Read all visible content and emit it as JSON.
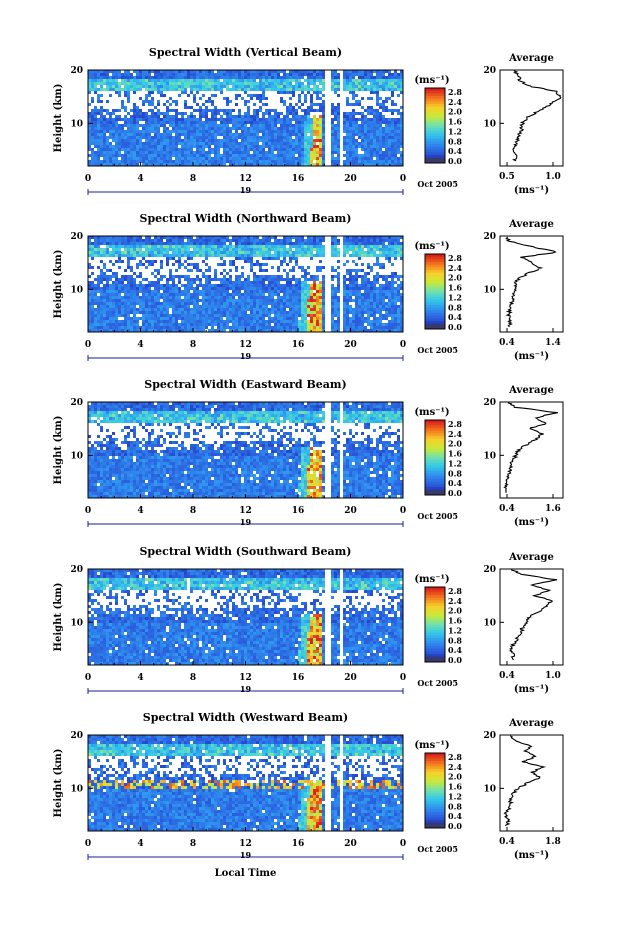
{
  "figure": {
    "xlabel": "Local Time",
    "ylabel": "Height (km)",
    "date_label": "Oct 2005",
    "day_label": "19",
    "colorbar_unit": "(ms⁻¹)",
    "avg_title": "Average",
    "avg_xlabel": "(ms⁻¹)"
  },
  "chart_data": [
    {
      "type": "heatmap",
      "title": "Spectral Width (Vertical Beam)",
      "xlabel": "",
      "ylabel": "Height (km)",
      "xlim": [
        0,
        24
      ],
      "xticks": [
        "0",
        "4",
        "8",
        "12",
        "16",
        "20",
        "0"
      ],
      "ylim": [
        2,
        20
      ],
      "yticks": [
        "20",
        "10"
      ],
      "colorbar": {
        "ticks": [
          "2.8",
          "2.4",
          "2.0",
          "1.6",
          "1.2",
          "0.8",
          "0.4",
          "0.0"
        ],
        "range": [
          0,
          2.8
        ]
      },
      "enhanced_region": {
        "start_hour": 16.8,
        "end_hour": 17.8
      },
      "average_profile": {
        "title": "Average",
        "xlim": [
          0.4,
          1.1
        ],
        "xticks": [
          "0.5",
          "1.0"
        ],
        "yticks": [
          "20",
          "10"
        ],
        "height": [
          3,
          4,
          5,
          6,
          7,
          8,
          9,
          10,
          11,
          12,
          13,
          14,
          15,
          16,
          17,
          18,
          19,
          20
        ],
        "values": [
          0.56,
          0.58,
          0.55,
          0.58,
          0.6,
          0.62,
          0.64,
          0.65,
          0.7,
          0.8,
          0.9,
          1.0,
          1.08,
          1.02,
          0.72,
          0.62,
          0.6,
          0.55
        ]
      }
    },
    {
      "type": "heatmap",
      "title": "Spectral Width (Northward Beam)",
      "xlabel": "",
      "ylabel": "Height (km)",
      "xlim": [
        0,
        24
      ],
      "xticks": [
        "0",
        "4",
        "8",
        "12",
        "16",
        "20",
        "0"
      ],
      "ylim": [
        2,
        20
      ],
      "yticks": [
        "20",
        "10"
      ],
      "colorbar": {
        "ticks": [
          "2.8",
          "2.4",
          "2.0",
          "1.6",
          "1.2",
          "0.8",
          "0.4",
          "0.0"
        ],
        "range": [
          0,
          2.8
        ]
      },
      "enhanced_region": {
        "start_hour": 16.5,
        "end_hour": 17.8
      },
      "average_profile": {
        "title": "Average",
        "xlim": [
          0.4,
          1.4
        ],
        "xticks": [
          "0.4",
          "1.4"
        ],
        "yticks": [
          "20",
          "10"
        ],
        "height": [
          3,
          4,
          5,
          6,
          7,
          8,
          9,
          10,
          11,
          12,
          13,
          14,
          15,
          16,
          17,
          18,
          19,
          20
        ],
        "values": [
          0.55,
          0.56,
          0.54,
          0.55,
          0.58,
          0.6,
          0.62,
          0.65,
          0.64,
          0.7,
          0.85,
          1.05,
          0.9,
          0.75,
          1.3,
          0.9,
          0.55,
          0.5
        ]
      }
    },
    {
      "type": "heatmap",
      "title": "Spectral Width (Eastward Beam)",
      "xlabel": "",
      "ylabel": "Height (km)",
      "xlim": [
        0,
        24
      ],
      "xticks": [
        "0",
        "4",
        "8",
        "12",
        "16",
        "20",
        "0"
      ],
      "ylim": [
        2,
        20
      ],
      "yticks": [
        "20",
        "10"
      ],
      "colorbar": {
        "ticks": [
          "2.8",
          "2.4",
          "2.0",
          "1.6",
          "1.2",
          "0.8",
          "0.4",
          "0.0"
        ],
        "range": [
          0,
          2.8
        ]
      },
      "enhanced_region": {
        "start_hour": 16.5,
        "end_hour": 17.8
      },
      "average_profile": {
        "title": "Average",
        "xlim": [
          0.4,
          1.6
        ],
        "xticks": [
          "0.4",
          "1.6"
        ],
        "yticks": [
          "20",
          "10"
        ],
        "height": [
          3,
          4,
          5,
          6,
          7,
          8,
          9,
          10,
          11,
          12,
          13,
          14,
          15,
          16,
          17,
          18,
          19,
          20
        ],
        "values": [
          0.5,
          0.52,
          0.5,
          0.55,
          0.58,
          0.6,
          0.65,
          0.7,
          0.75,
          0.9,
          1.1,
          1.2,
          0.95,
          1.3,
          1.05,
          1.5,
          0.7,
          0.55
        ]
      }
    },
    {
      "type": "heatmap",
      "title": "Spectral Width (Southward Beam)",
      "xlabel": "",
      "ylabel": "Height (km)",
      "xlim": [
        0,
        24
      ],
      "xticks": [
        "0",
        "4",
        "8",
        "12",
        "16",
        "20",
        "0"
      ],
      "ylim": [
        2,
        20
      ],
      "yticks": [
        "20",
        "10"
      ],
      "colorbar": {
        "ticks": [
          "2.8",
          "2.4",
          "2.0",
          "1.6",
          "1.2",
          "0.8",
          "0.4",
          "0.0"
        ],
        "range": [
          0,
          2.8
        ]
      },
      "enhanced_region": {
        "start_hour": 16.5,
        "end_hour": 17.8
      },
      "average_profile": {
        "title": "Average",
        "xlim": [
          0.3,
          1.2
        ],
        "xticks": [
          "0.4",
          "1.0"
        ],
        "yticks": [
          "20",
          "10"
        ],
        "height": [
          3,
          4,
          5,
          6,
          7,
          8,
          9,
          10,
          11,
          12,
          13,
          14,
          15,
          16,
          17,
          18,
          19,
          20
        ],
        "values": [
          0.48,
          0.5,
          0.45,
          0.5,
          0.55,
          0.6,
          0.62,
          0.68,
          0.72,
          0.85,
          0.95,
          1.05,
          0.8,
          1.0,
          0.75,
          1.1,
          0.6,
          0.45
        ]
      }
    },
    {
      "type": "heatmap",
      "title": "Spectral Width (Westward Beam)",
      "xlabel": "Local Time",
      "ylabel": "Height (km)",
      "xlim": [
        0,
        24
      ],
      "xticks": [
        "0",
        "4",
        "8",
        "12",
        "16",
        "20",
        "0"
      ],
      "ylim": [
        2,
        20
      ],
      "yticks": [
        "20",
        "10"
      ],
      "colorbar": {
        "ticks": [
          "2.8",
          "2.4",
          "2.0",
          "1.6",
          "1.2",
          "0.8",
          "0.4",
          "0.0"
        ],
        "range": [
          0,
          2.8
        ]
      },
      "enhanced_region": {
        "start_hour": 16.5,
        "end_hour": 17.8
      },
      "average_profile": {
        "title": "Average",
        "xlim": [
          0.4,
          1.8
        ],
        "xticks": [
          "0.4",
          "1.8"
        ],
        "yticks": [
          "20",
          "10"
        ],
        "height": [
          3,
          4,
          5,
          6,
          7,
          8,
          9,
          10,
          11,
          12,
          13,
          14,
          15,
          16,
          17,
          18,
          19,
          20
        ],
        "values": [
          0.55,
          0.6,
          0.52,
          0.58,
          0.62,
          0.65,
          0.7,
          0.8,
          1.0,
          1.3,
          1.1,
          1.35,
          0.9,
          1.2,
          0.95,
          1.1,
          0.7,
          0.6
        ]
      }
    }
  ]
}
